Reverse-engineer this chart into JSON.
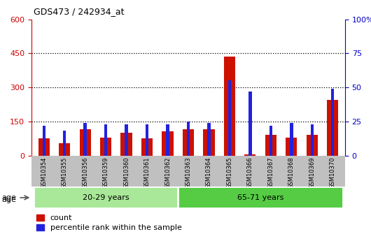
{
  "title": "GDS473 / 242934_at",
  "samples": [
    "GSM10354",
    "GSM10355",
    "GSM10356",
    "GSM10359",
    "GSM10360",
    "GSM10361",
    "GSM10362",
    "GSM10363",
    "GSM10364",
    "GSM10365",
    "GSM10366",
    "GSM10367",
    "GSM10368",
    "GSM10369",
    "GSM10370"
  ],
  "counts": [
    75,
    55,
    115,
    80,
    100,
    75,
    105,
    115,
    115,
    435,
    5,
    90,
    80,
    90,
    245
  ],
  "percentile_rank": [
    22,
    18,
    24,
    23,
    23,
    23,
    23,
    25,
    24,
    55,
    47,
    22,
    24,
    23,
    49
  ],
  "groups": [
    {
      "label": "20-29 years",
      "indices": [
        0,
        1,
        2,
        3,
        4,
        5,
        6
      ],
      "color": "#a8e898"
    },
    {
      "label": "65-71 years",
      "indices": [
        7,
        8,
        9,
        10,
        11,
        12,
        13,
        14
      ],
      "color": "#55cc44"
    }
  ],
  "left_ylim": [
    0,
    600
  ],
  "right_ylim": [
    0,
    100
  ],
  "left_yticks": [
    0,
    150,
    300,
    450,
    600
  ],
  "right_yticks": [
    0,
    25,
    50,
    75,
    100
  ],
  "right_yticklabels": [
    "0",
    "25",
    "50",
    "75",
    "100%"
  ],
  "left_ycolor": "#cc0000",
  "right_ycolor": "#0000cc",
  "bar_color_red": "#cc1100",
  "bar_color_blue": "#2222dd",
  "tick_bg": "#c0c0c0",
  "legend_red_label": "count",
  "legend_blue_label": "percentile rank within the sample",
  "age_label": "age"
}
